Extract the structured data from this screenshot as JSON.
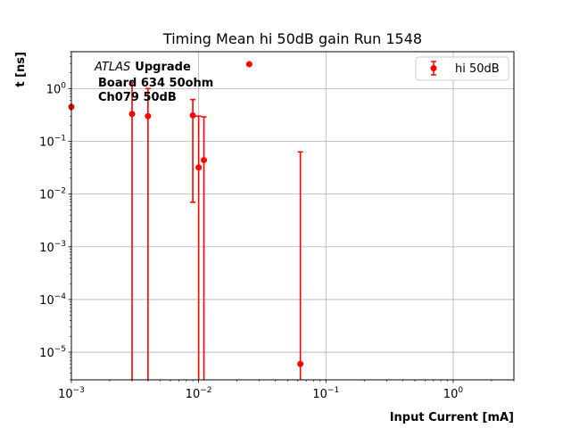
{
  "chart_data": {
    "type": "scatter",
    "title": "Timing Mean hi 50dB gain Run 1548",
    "xlabel": "Input Current [mA]",
    "ylabel": "t [ns]",
    "xscale": "log",
    "yscale": "log",
    "xlim": [
      0.001,
      3
    ],
    "ylim": [
      3e-06,
      5
    ],
    "x_ticks": [
      {
        "value": 0.001,
        "base": "10",
        "exp": "−3"
      },
      {
        "value": 0.01,
        "base": "10",
        "exp": "−2"
      },
      {
        "value": 0.1,
        "base": "10",
        "exp": "−1"
      },
      {
        "value": 1,
        "base": "10",
        "exp": "0"
      }
    ],
    "y_ticks": [
      {
        "value": 1e-05,
        "base": "10",
        "exp": "−5"
      },
      {
        "value": 0.0001,
        "base": "10",
        "exp": "−4"
      },
      {
        "value": 0.001,
        "base": "10",
        "exp": "−3"
      },
      {
        "value": 0.01,
        "base": "10",
        "exp": "−2"
      },
      {
        "value": 0.1,
        "base": "10",
        "exp": "−1"
      },
      {
        "value": 1,
        "base": "10",
        "exp": "0"
      }
    ],
    "grid": true,
    "legend_position": "top-right",
    "annotation": {
      "experiment": "ATLAS",
      "tag": "Upgrade",
      "line2": "Board 634 50ohm",
      "line3": "Ch079 50dB"
    },
    "series": [
      {
        "name": "hi 50dB",
        "color": "#ff0000",
        "points": [
          {
            "x": 0.001,
            "y": 0.45,
            "err_low": null,
            "err_high": null
          },
          {
            "x": 0.003,
            "y": 0.33,
            "err_low": 0,
            "err_high": 1.3
          },
          {
            "x": 0.004,
            "y": 0.3,
            "err_low": 0,
            "err_high": 1.0
          },
          {
            "x": 0.009,
            "y": 0.31,
            "err_low": 0.007,
            "err_high": 0.62
          },
          {
            "x": 0.01,
            "y": 0.032,
            "err_low": 0,
            "err_high": 0.3
          },
          {
            "x": 0.011,
            "y": 0.044,
            "err_low": 0,
            "err_high": 0.29
          },
          {
            "x": 0.025,
            "y": 2.9,
            "err_low": null,
            "err_high": null
          },
          {
            "x": 0.063,
            "y": 6e-06,
            "err_low": 0,
            "err_high": 0.063
          }
        ]
      }
    ]
  }
}
